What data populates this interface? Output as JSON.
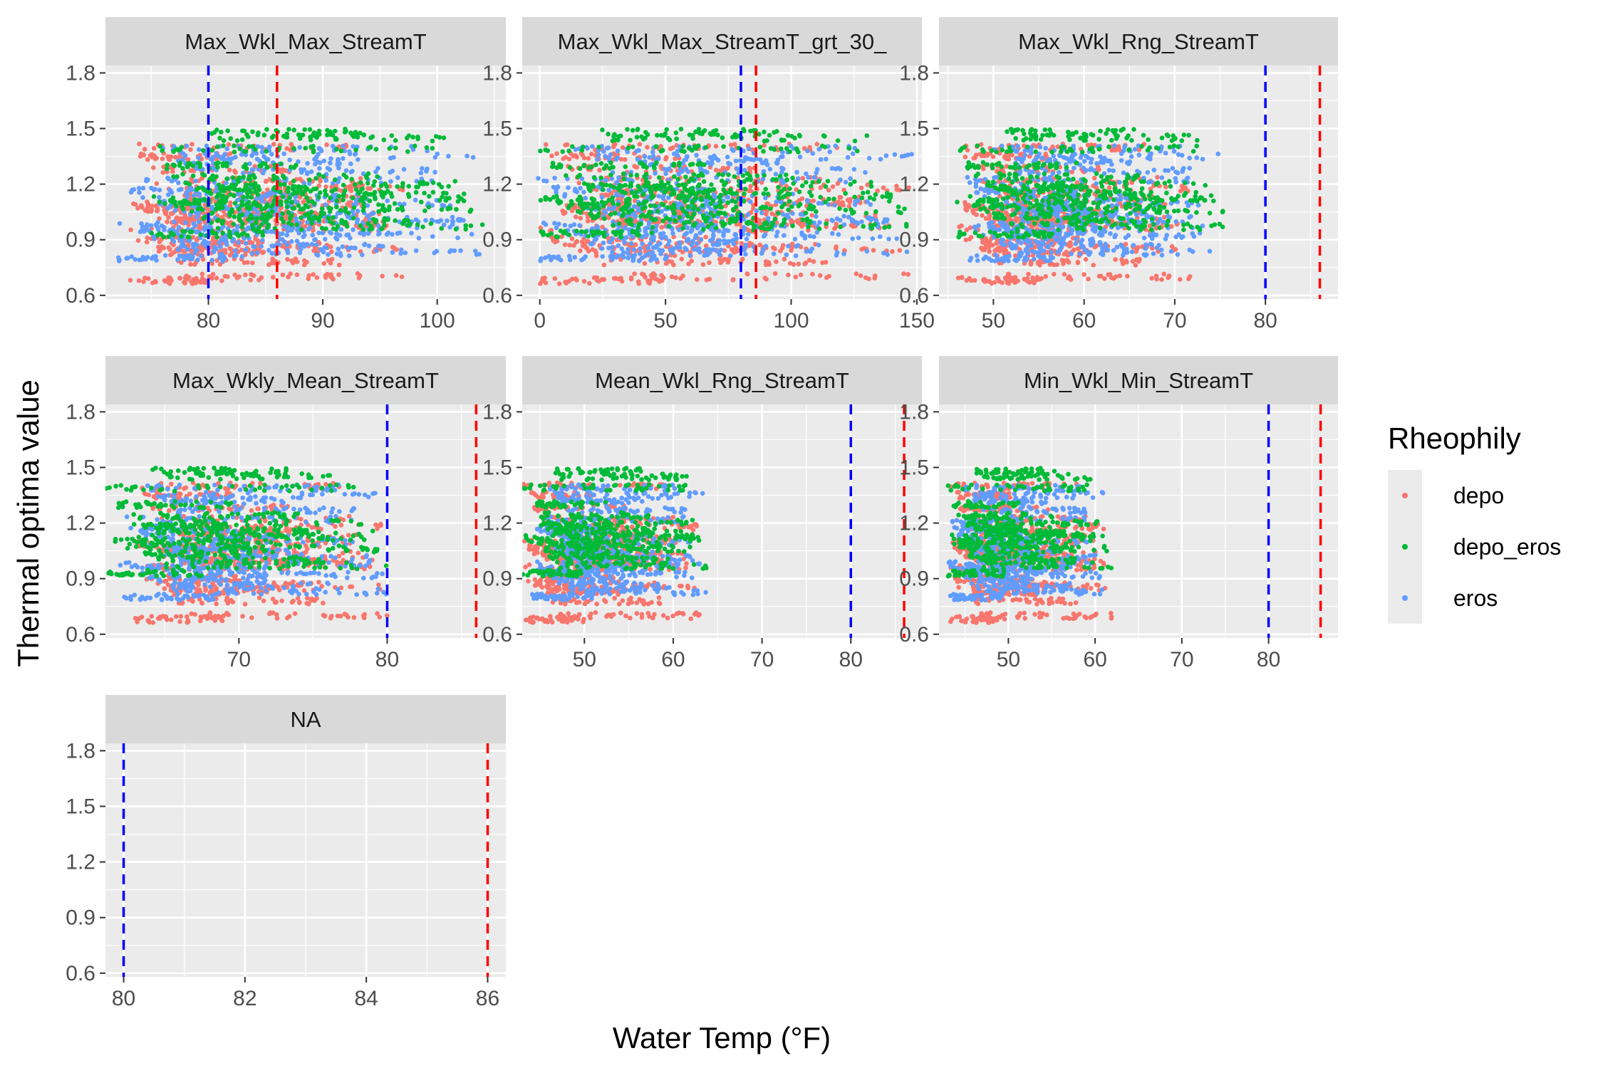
{
  "chart_data": {
    "type": "scatter",
    "xlabel": "Water Temp (°F)",
    "ylabel": "Thermal optima value",
    "ylim": [
      0.58,
      1.84
    ],
    "y_ticks": [
      0.6,
      0.9,
      1.2,
      1.5,
      1.8
    ],
    "y_tick_labels": [
      "0.6",
      "0.9",
      "1.2",
      "1.5",
      "1.8"
    ],
    "reference_lines": [
      {
        "x": 80,
        "color": "#0000ff",
        "style": "dashed"
      },
      {
        "x": 86,
        "color": "#ff0000",
        "style": "dashed"
      }
    ],
    "legend": {
      "title": "Rheophily",
      "placement": "right",
      "entries": [
        {
          "label": "depo",
          "color": "#F8766D"
        },
        {
          "label": "depo_eros",
          "color": "#00BA38"
        },
        {
          "label": "eros",
          "color": "#619CFF"
        }
      ]
    },
    "y_bands": [
      {
        "series": "depo",
        "levels": [
          0.68,
          0.7,
          0.78,
          0.83,
          0.85,
          0.87,
          0.9,
          0.96,
          0.99,
          1.0,
          1.01,
          1.03,
          1.05,
          1.07,
          1.09,
          1.12,
          1.15,
          1.18,
          1.22,
          1.28,
          1.35,
          1.4
        ]
      },
      {
        "series": "depo_eros",
        "levels": [
          0.93,
          0.97,
          1.0,
          1.03,
          1.06,
          1.08,
          1.1,
          1.12,
          1.14,
          1.16,
          1.18,
          1.2,
          1.24,
          1.3,
          1.39,
          1.45,
          1.48
        ]
      },
      {
        "series": "eros",
        "levels": [
          0.8,
          0.83,
          0.86,
          0.89,
          0.92,
          0.94,
          0.96,
          0.98,
          1.01,
          1.04,
          1.07,
          1.1,
          1.13,
          1.17,
          1.22,
          1.27,
          1.32,
          1.35,
          1.39
        ]
      }
    ],
    "panels": [
      {
        "title": "Max_Wkl_Max_StreamT",
        "xlim": [
          71,
          106
        ],
        "ticks": [
          80,
          90,
          100
        ],
        "tick_labels": [
          "80",
          "90",
          "100"
        ],
        "x_ranges": {
          "depo": [
            73,
            97
          ],
          "depo_eros": [
            75,
            104
          ],
          "eros": [
            72,
            104
          ]
        }
      },
      {
        "title": "Max_Wkl_Max_StreamT_grt_30_",
        "xlim": [
          -7,
          152
        ],
        "ticks": [
          0,
          50,
          100,
          150
        ],
        "tick_labels": [
          "0",
          "50",
          "100",
          "150"
        ],
        "x_ranges": {
          "depo": [
            -1,
            148
          ],
          "depo_eros": [
            -1,
            148
          ],
          "eros": [
            -1,
            148
          ]
        }
      },
      {
        "title": "Max_Wkl_Rng_StreamT",
        "xlim": [
          44,
          88
        ],
        "ticks": [
          50,
          60,
          70,
          80
        ],
        "tick_labels": [
          "50",
          "60",
          "70",
          "80"
        ],
        "x_ranges": {
          "depo": [
            46,
            72
          ],
          "depo_eros": [
            46,
            76
          ],
          "eros": [
            47,
            75
          ]
        }
      },
      {
        "title": "Max_Wkly_Mean_StreamT",
        "xlim": [
          61,
          88
        ],
        "ticks": [
          70,
          80
        ],
        "tick_labels": [
          "70",
          "80"
        ],
        "x_ranges": {
          "depo": [
            63,
            80
          ],
          "depo_eros": [
            61,
            80
          ],
          "eros": [
            62,
            80
          ]
        }
      },
      {
        "title": "Mean_Wkl_Rng_StreamT",
        "xlim": [
          43,
          88
        ],
        "ticks": [
          50,
          60,
          70,
          80
        ],
        "tick_labels": [
          "50",
          "60",
          "70",
          "80"
        ],
        "x_ranges": {
          "depo": [
            43,
            63
          ],
          "depo_eros": [
            43,
            64
          ],
          "eros": [
            44,
            64
          ]
        }
      },
      {
        "title": "Min_Wkl_Min_StreamT",
        "xlim": [
          42,
          88
        ],
        "ticks": [
          50,
          60,
          70,
          80
        ],
        "tick_labels": [
          "50",
          "60",
          "70",
          "80"
        ],
        "x_ranges": {
          "depo": [
            43,
            62
          ],
          "depo_eros": [
            43,
            62
          ],
          "eros": [
            43,
            61
          ]
        }
      },
      {
        "title": "NA",
        "xlim": [
          79.7,
          86.3
        ],
        "ticks": [
          80,
          82,
          84,
          86
        ],
        "tick_labels": [
          "80",
          "82",
          "84",
          "86"
        ],
        "x_ranges": {}
      }
    ]
  }
}
